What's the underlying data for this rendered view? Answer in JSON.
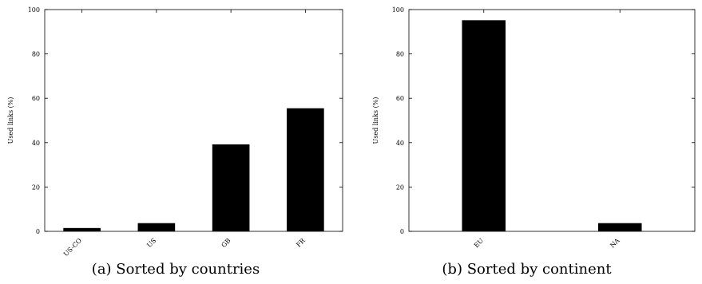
{
  "chart_data": [
    {
      "type": "bar",
      "title": "",
      "caption": "(a) Sorted by countries",
      "xlabel": "",
      "ylabel": "Used links (%)",
      "categories": [
        "US-CO",
        "US",
        "GB",
        "FR"
      ],
      "values": [
        1.5,
        3.7,
        39.2,
        55.5
      ],
      "ylim": [
        0,
        100
      ],
      "yticks": [
        0,
        20,
        40,
        60,
        80,
        100
      ],
      "bar_color": "#000000",
      "grid": false
    },
    {
      "type": "bar",
      "title": "",
      "caption": "(b) Sorted by continent",
      "xlabel": "",
      "ylabel": "Used links (%)",
      "categories": [
        "EU",
        "NA"
      ],
      "values": [
        95.2,
        3.7
      ],
      "ylim": [
        0,
        100
      ],
      "yticks": [
        0,
        20,
        40,
        60,
        80,
        100
      ],
      "bar_color": "#000000",
      "grid": false
    }
  ]
}
